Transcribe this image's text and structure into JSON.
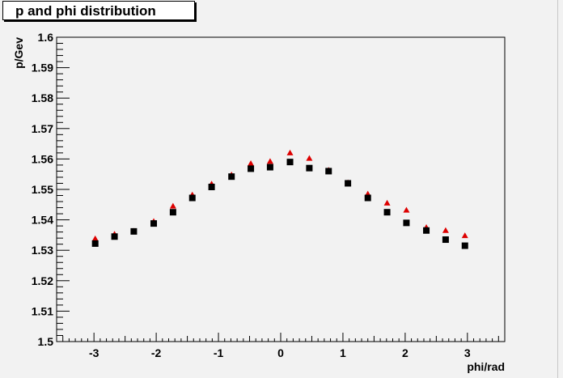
{
  "title": "p and phi distribution",
  "chart_data": {
    "type": "scatter",
    "title": "p and phi distribution",
    "xlabel": "phi/rad",
    "ylabel": "p/Gev",
    "xlim": [
      -3.6,
      3.6
    ],
    "ylim": [
      1.5,
      1.6
    ],
    "x_ticks": [
      "-3",
      "-2",
      "-1",
      "0",
      "1",
      "2",
      "3"
    ],
    "y_ticks": [
      "1.5",
      "1.51",
      "1.52",
      "1.53",
      "1.54",
      "1.55",
      "1.56",
      "1.57",
      "1.58",
      "1.59",
      "1.6"
    ],
    "grid": false,
    "colors": {
      "frame_bg": "#f2f2f2",
      "plot_bg": "#f2f2f2",
      "triangles": "#dd0000",
      "squares": "#000000"
    },
    "series": [
      {
        "marker": "triangle",
        "color": "#dd0000",
        "x": [
          -2.98,
          -2.67,
          -2.36,
          -2.04,
          -1.73,
          -1.42,
          -1.11,
          -0.79,
          -0.48,
          -0.17,
          0.15,
          0.46,
          0.77,
          1.08,
          1.4,
          1.71,
          2.02,
          2.34,
          2.65,
          2.96
        ],
        "y": [
          1.5338,
          1.5353,
          1.5363,
          1.5395,
          1.5445,
          1.5482,
          1.5518,
          1.5548,
          1.5585,
          1.5592,
          1.562,
          1.5602,
          1.5563,
          1.5522,
          1.5485,
          1.5455,
          1.5432,
          1.5375,
          1.5365,
          1.5348
        ]
      },
      {
        "marker": "square",
        "color": "#000000",
        "x": [
          -2.98,
          -2.67,
          -2.36,
          -2.04,
          -1.73,
          -1.42,
          -1.11,
          -0.79,
          -0.48,
          -0.17,
          0.15,
          0.46,
          0.77,
          1.08,
          1.4,
          1.71,
          2.02,
          2.34,
          2.65,
          2.96
        ],
        "y": [
          1.5322,
          1.5345,
          1.5362,
          1.5388,
          1.5425,
          1.5472,
          1.5508,
          1.5542,
          1.5568,
          1.5573,
          1.559,
          1.557,
          1.556,
          1.552,
          1.5472,
          1.5425,
          1.539,
          1.5365,
          1.5335,
          1.5315
        ]
      }
    ]
  }
}
